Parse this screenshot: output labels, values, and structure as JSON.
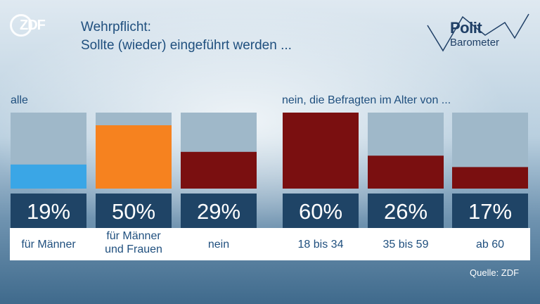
{
  "brand": {
    "logo_text": "ZDF",
    "polit_line1": "Polit",
    "polit_line2": "Barometer"
  },
  "header": {
    "title_line1": "Wehrpflicht:",
    "title_line2": "Sollte (wieder) eingeführt werden ..."
  },
  "groups": {
    "left_label": "alle",
    "right_label": "nein, die Befragten im Alter von ..."
  },
  "source": "Quelle: ZDF",
  "chart_data": {
    "type": "bar",
    "categories": [
      "für Männer",
      "für Männer und Frauen",
      "nein",
      "18 bis 34",
      "35 bis 59",
      "ab 60"
    ],
    "category_lines": [
      [
        "für Männer"
      ],
      [
        "für Männer",
        "und Frauen"
      ],
      [
        "nein"
      ],
      [
        "18 bis 34"
      ],
      [
        "35 bis 59"
      ],
      [
        "ab 60"
      ]
    ],
    "values": [
      19,
      50,
      29,
      60,
      26,
      17
    ],
    "value_labels": [
      "19%",
      "50%",
      "29%",
      "60%",
      "26%",
      "17%"
    ],
    "colors": [
      "#3aa6e6",
      "#f6821f",
      "#7a0f10",
      "#7a0f10",
      "#7a0f10",
      "#7a0f10"
    ],
    "ylim": [
      0,
      60
    ],
    "track_color": "#9fb8c9",
    "label_box_color": "#1f4466"
  }
}
